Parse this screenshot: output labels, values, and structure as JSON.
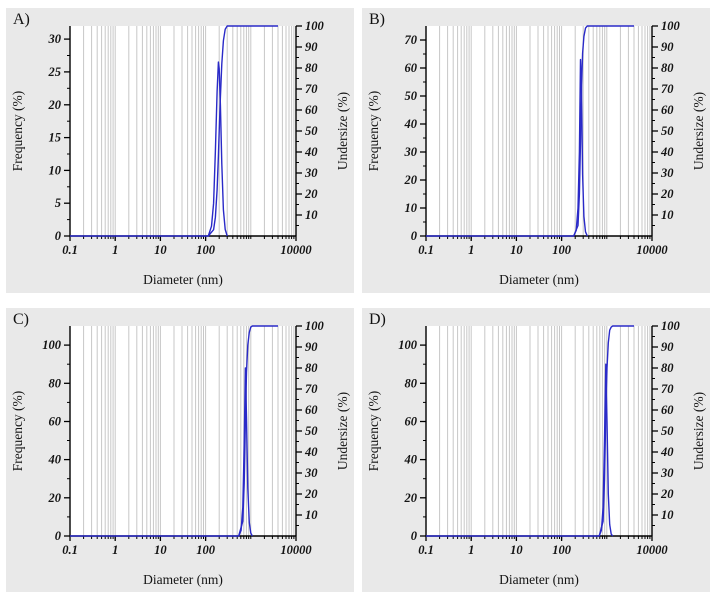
{
  "figure": {
    "description": "Particle size distribution plots, four panels"
  },
  "chart_data": [
    {
      "type": "line",
      "panel": "A)",
      "xlabel": "Diameter (nm)",
      "ylabel_left": "Frequency (%)",
      "ylabel_right": "Undersize (%)",
      "x_scale": "log",
      "xlim": [
        0.1,
        10000
      ],
      "x_ticks": [
        0.1,
        1,
        10,
        100,
        10000
      ],
      "x_tick_labels": [
        "0.1",
        "1",
        "10",
        "100",
        "10000"
      ],
      "ylim_left": [
        0,
        32
      ],
      "yticks_left": [
        0,
        5,
        10,
        15,
        20,
        25,
        30
      ],
      "ylim_right": [
        0,
        100
      ],
      "yticks_right": [
        10,
        20,
        30,
        40,
        50,
        60,
        70,
        80,
        90,
        100
      ],
      "grid": "vertical-log",
      "line_color": "#2a2ac8",
      "series": [
        {
          "name": "Frequency",
          "axis": "left",
          "points": [
            [
              115,
              0
            ],
            [
              135,
              1.5
            ],
            [
              150,
              5
            ],
            [
              165,
              13
            ],
            [
              180,
              22
            ],
            [
              192,
              26.5
            ],
            [
              200,
              25.5
            ],
            [
              212,
              20
            ],
            [
              228,
              11
            ],
            [
              248,
              4
            ],
            [
              272,
              1
            ],
            [
              300,
              0
            ]
          ]
        },
        {
          "name": "Undersize",
          "axis": "right",
          "points": [
            [
              0.1,
              0
            ],
            [
              115,
              0
            ],
            [
              150,
              3
            ],
            [
              165,
              9
            ],
            [
              180,
              22
            ],
            [
              192,
              38
            ],
            [
              200,
              50
            ],
            [
              212,
              66
            ],
            [
              228,
              82
            ],
            [
              248,
              93
            ],
            [
              272,
              98.5
            ],
            [
              300,
              100
            ],
            [
              4000,
              100
            ]
          ]
        }
      ]
    },
    {
      "type": "line",
      "panel": "B)",
      "xlabel": "Diameter (nm)",
      "ylabel_left": "Frequency (%)",
      "ylabel_right": "Undersize (%)",
      "x_scale": "log",
      "xlim": [
        0.1,
        10000
      ],
      "x_ticks": [
        0.1,
        1,
        10,
        100,
        10000
      ],
      "x_tick_labels": [
        "0.1",
        "1",
        "10",
        "100",
        "10000"
      ],
      "ylim_left": [
        0,
        75
      ],
      "yticks_left": [
        0,
        10,
        20,
        30,
        40,
        50,
        60,
        70
      ],
      "ylim_right": [
        0,
        100
      ],
      "yticks_right": [
        10,
        20,
        30,
        40,
        50,
        60,
        70,
        80,
        90,
        100
      ],
      "grid": "vertical-log",
      "line_color": "#2a2ac8",
      "series": [
        {
          "name": "Frequency",
          "axis": "left",
          "points": [
            [
              185,
              0
            ],
            [
              210,
              2
            ],
            [
              230,
              10
            ],
            [
              248,
              30
            ],
            [
              262,
              63
            ],
            [
              276,
              52
            ],
            [
              292,
              22
            ],
            [
              312,
              7
            ],
            [
              338,
              1.5
            ],
            [
              370,
              0
            ]
          ]
        },
        {
          "name": "Undersize",
          "axis": "right",
          "points": [
            [
              0.1,
              0
            ],
            [
              185,
              0
            ],
            [
              230,
              5
            ],
            [
              248,
              20
            ],
            [
              262,
              45
            ],
            [
              276,
              70
            ],
            [
              292,
              87
            ],
            [
              312,
              95
            ],
            [
              338,
              99
            ],
            [
              370,
              100
            ],
            [
              4000,
              100
            ]
          ]
        }
      ]
    },
    {
      "type": "line",
      "panel": "C)",
      "xlabel": "Diameter (nm)",
      "ylabel_left": "Frequency (%)",
      "ylabel_right": "Undersize (%)",
      "x_scale": "log",
      "xlim": [
        0.1,
        10000
      ],
      "x_ticks": [
        0.1,
        1,
        10,
        100,
        10000
      ],
      "x_tick_labels": [
        "0.1",
        "1",
        "10",
        "100",
        "10000"
      ],
      "ylim_left": [
        0,
        110
      ],
      "yticks_left": [
        0,
        20,
        40,
        60,
        80,
        100
      ],
      "ylim_right": [
        0,
        100
      ],
      "yticks_right": [
        10,
        20,
        30,
        40,
        50,
        60,
        70,
        80,
        90,
        100
      ],
      "grid": "vertical-log",
      "line_color": "#2a2ac8",
      "series": [
        {
          "name": "Frequency",
          "axis": "left",
          "points": [
            [
              540,
              0
            ],
            [
              610,
              3
            ],
            [
              665,
              15
            ],
            [
              715,
              48
            ],
            [
              760,
              88
            ],
            [
              805,
              62
            ],
            [
              860,
              25
            ],
            [
              925,
              7
            ],
            [
              1000,
              1.5
            ],
            [
              1080,
              0
            ]
          ]
        },
        {
          "name": "Undersize",
          "axis": "right",
          "points": [
            [
              0.1,
              0
            ],
            [
              540,
              0
            ],
            [
              665,
              7
            ],
            [
              715,
              25
            ],
            [
              760,
              55
            ],
            [
              805,
              78
            ],
            [
              860,
              91
            ],
            [
              925,
              97
            ],
            [
              1000,
              99.5
            ],
            [
              1080,
              100
            ],
            [
              4000,
              100
            ]
          ]
        }
      ]
    },
    {
      "type": "line",
      "panel": "D)",
      "xlabel": "Diameter (nm)",
      "ylabel_left": "Frequency (%)",
      "ylabel_right": "Undersize (%)",
      "x_scale": "log",
      "xlim": [
        0.1,
        10000
      ],
      "x_ticks": [
        0.1,
        1,
        10,
        100,
        10000
      ],
      "x_tick_labels": [
        "0.1",
        "1",
        "10",
        "100",
        "10000"
      ],
      "ylim_left": [
        0,
        110
      ],
      "yticks_left": [
        0,
        20,
        40,
        60,
        80,
        100
      ],
      "ylim_right": [
        0,
        100
      ],
      "yticks_right": [
        10,
        20,
        30,
        40,
        50,
        60,
        70,
        80,
        90,
        100
      ],
      "grid": "vertical-log",
      "line_color": "#2a2ac8",
      "series": [
        {
          "name": "Frequency",
          "axis": "left",
          "points": [
            [
              680,
              0
            ],
            [
              760,
              3
            ],
            [
              830,
              15
            ],
            [
              890,
              50
            ],
            [
              950,
              90
            ],
            [
              1010,
              60
            ],
            [
              1080,
              22
            ],
            [
              1160,
              6
            ],
            [
              1250,
              1
            ],
            [
              1350,
              0
            ]
          ]
        },
        {
          "name": "Undersize",
          "axis": "right",
          "points": [
            [
              0.1,
              0
            ],
            [
              680,
              0
            ],
            [
              830,
              7
            ],
            [
              890,
              27
            ],
            [
              950,
              58
            ],
            [
              1010,
              80
            ],
            [
              1080,
              92
            ],
            [
              1160,
              98
            ],
            [
              1250,
              99.5
            ],
            [
              1350,
              100
            ],
            [
              4000,
              100
            ]
          ]
        }
      ]
    }
  ]
}
